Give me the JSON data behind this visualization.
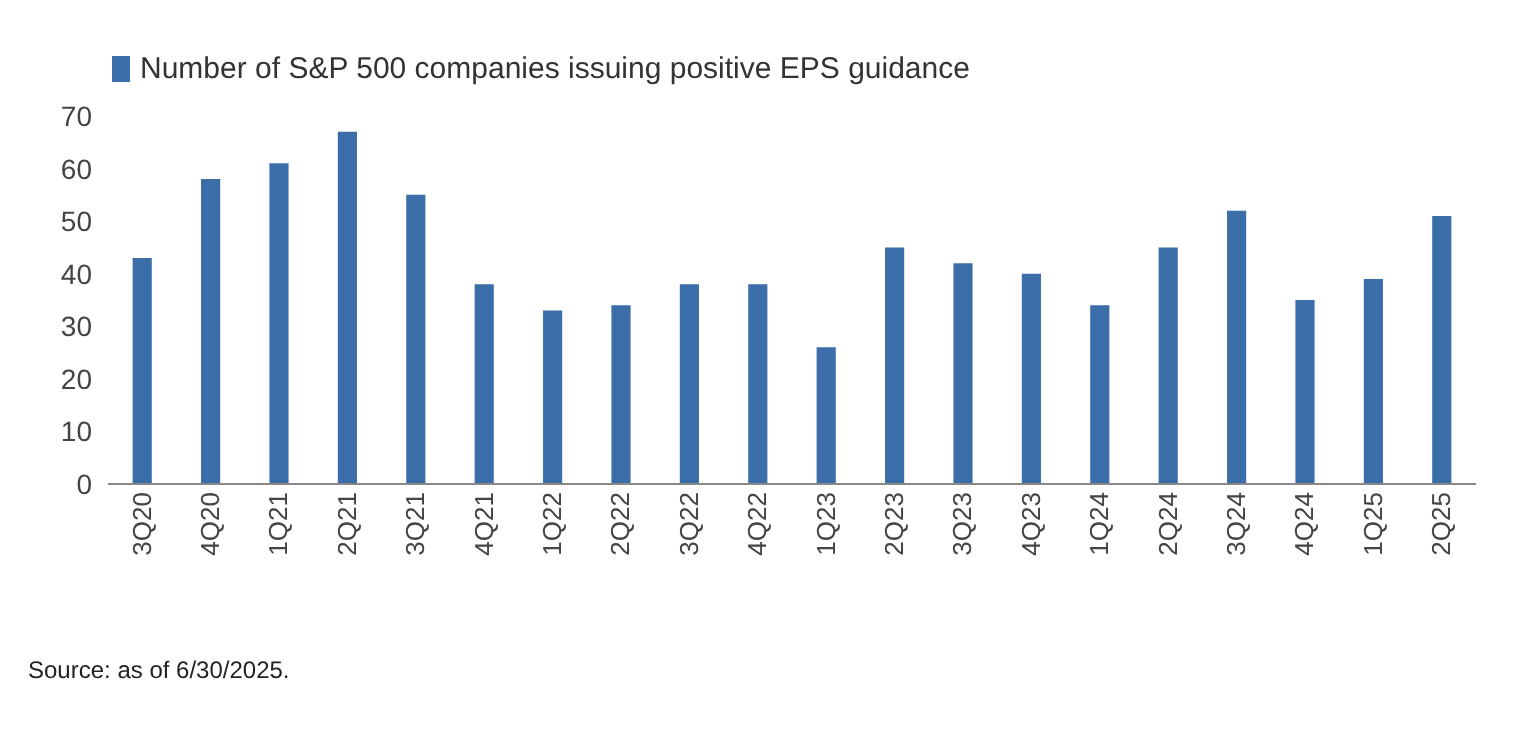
{
  "chart_data": {
    "type": "bar",
    "categories": [
      "3Q20",
      "4Q20",
      "1Q21",
      "2Q21",
      "3Q21",
      "4Q21",
      "1Q22",
      "2Q22",
      "3Q22",
      "4Q22",
      "1Q23",
      "2Q23",
      "3Q23",
      "4Q23",
      "1Q24",
      "2Q24",
      "3Q24",
      "4Q24",
      "1Q25",
      "2Q25"
    ],
    "series": [
      {
        "name": "Number of S&P 500 companies issuing positive EPS guidance",
        "color": "#3b6ea8",
        "values": [
          43,
          58,
          61,
          67,
          55,
          38,
          33,
          34,
          38,
          38,
          26,
          45,
          42,
          40,
          34,
          45,
          52,
          35,
          39,
          51
        ]
      }
    ],
    "ylim": [
      0,
      70
    ],
    "yticks": [
      0,
      10,
      20,
      30,
      40,
      50,
      60,
      70
    ],
    "grid": false,
    "legend": "top left",
    "annotations": [
      "Source: as of 6/30/2025."
    ]
  }
}
